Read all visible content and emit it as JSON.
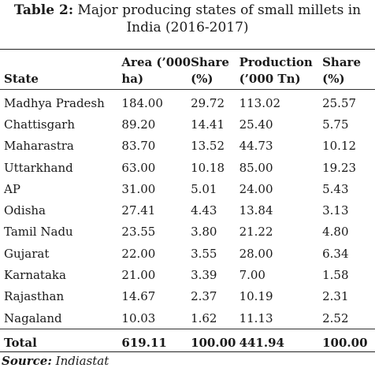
{
  "title": {
    "label": "Table 2:",
    "line1": " Major producing states of small millets in",
    "line2": "India (2016-2017)"
  },
  "table": {
    "headers": {
      "state": "State",
      "area_line1": "Area (’000",
      "area_line2": "ha)",
      "share1_line1": "Share",
      "share1_line2": "(%)",
      "production_line1": "Production",
      "production_line2": "(’000 Tn)",
      "share2_line1": "Share",
      "share2_line2": "(%)"
    },
    "rows": [
      [
        "Madhya Pradesh",
        "184.00",
        "29.72",
        "113.02",
        "25.57"
      ],
      [
        "Chattisgarh",
        "89.20",
        "14.41",
        "25.40",
        "5.75"
      ],
      [
        "Maharastra",
        "83.70",
        "13.52",
        "44.73",
        "10.12"
      ],
      [
        "Uttarkhand",
        "63.00",
        "10.18",
        "85.00",
        "19.23"
      ],
      [
        "AP",
        "31.00",
        "5.01",
        "24.00",
        "5.43"
      ],
      [
        "Odisha",
        "27.41",
        "4.43",
        "13.84",
        "3.13"
      ],
      [
        "Tamil Nadu",
        "23.55",
        "3.80",
        "21.22",
        "4.80"
      ],
      [
        "Gujarat",
        "22.00",
        "3.55",
        "28.00",
        "6.34"
      ],
      [
        "Karnataka",
        "21.00",
        "3.39",
        "7.00",
        "1.58"
      ],
      [
        "Rajasthan",
        "14.67",
        "2.37",
        "10.19",
        "2.31"
      ],
      [
        "Nagaland",
        "10.03",
        "1.62",
        "11.13",
        "2.52"
      ]
    ],
    "total": [
      "Total",
      "619.11",
      "100.00",
      "441.94",
      "100.00"
    ]
  },
  "source": {
    "label": "Source:",
    "text": " Indiastat"
  }
}
